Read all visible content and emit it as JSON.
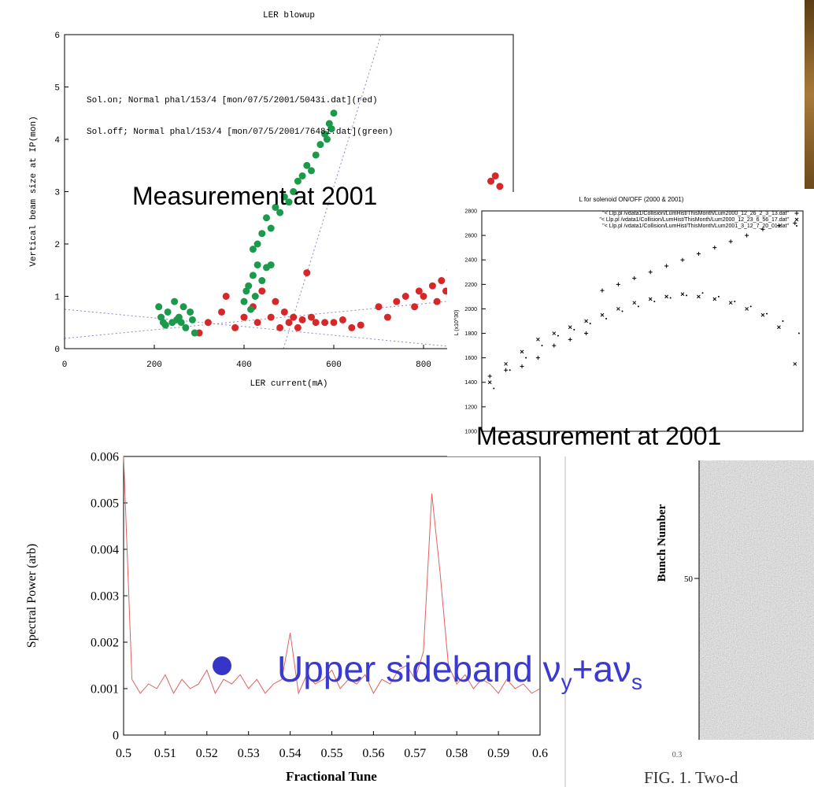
{
  "chart_data": [
    {
      "type": "scatter",
      "title": "LER blowup",
      "xlabel": "LER current(mA)",
      "ylabel": "Vertical beam size at IP(mon)",
      "xlim": [
        0,
        1000
      ],
      "ylim": [
        0,
        6
      ],
      "xticks": [
        0,
        200,
        400,
        600,
        800
      ],
      "yticks": [
        0,
        1,
        2,
        3,
        4,
        5,
        6
      ],
      "legend": "upper left",
      "series": [
        {
          "name": "Sol.on; Normal phal/153/4 [mon/07/5/2001/5043i.dat](red)",
          "color": "#d62828",
          "marker": "dot",
          "x": [
            300,
            320,
            350,
            360,
            380,
            400,
            420,
            430,
            440,
            460,
            470,
            480,
            490,
            500,
            510,
            520,
            530,
            540,
            550,
            560,
            580,
            600,
            620,
            640,
            660,
            700,
            720,
            740,
            760,
            780,
            790,
            800,
            820,
            830,
            840,
            850,
            860,
            870,
            880,
            890,
            900,
            950,
            960,
            970
          ],
          "values": [
            0.3,
            0.5,
            0.7,
            1.0,
            0.4,
            0.6,
            0.8,
            0.5,
            1.1,
            0.6,
            0.9,
            0.4,
            0.7,
            0.5,
            0.6,
            0.4,
            0.55,
            1.45,
            0.6,
            0.5,
            0.5,
            0.5,
            0.55,
            0.4,
            0.45,
            0.8,
            0.6,
            0.9,
            1.0,
            0.8,
            1.1,
            1.0,
            1.2,
            0.9,
            1.3,
            1.1,
            1.5,
            1.8,
            2.0,
            2.3,
            1.6,
            3.2,
            3.3,
            3.1
          ]
        },
        {
          "name": "Sol.off; Normal phal/153/4 [mon/07/5/2001/7648i.dat](green)",
          "color": "#1a9a4a",
          "marker": "dot",
          "x": [
            210,
            215,
            220,
            225,
            230,
            240,
            245,
            250,
            255,
            260,
            265,
            270,
            280,
            285,
            290,
            400,
            405,
            410,
            415,
            420,
            425,
            430,
            440,
            450,
            460,
            420,
            430,
            440,
            450,
            460,
            470,
            480,
            490,
            500,
            510,
            520,
            530,
            540,
            550,
            560,
            570,
            580,
            590,
            600,
            595,
            585
          ],
          "values": [
            0.8,
            0.6,
            0.5,
            0.45,
            0.7,
            0.5,
            0.9,
            0.55,
            0.6,
            0.5,
            0.8,
            0.4,
            0.7,
            0.55,
            0.3,
            0.9,
            1.1,
            1.2,
            0.75,
            1.4,
            1.0,
            1.6,
            1.3,
            1.55,
            1.6,
            1.9,
            2.0,
            2.2,
            2.5,
            2.3,
            2.7,
            2.6,
            2.9,
            2.8,
            3.0,
            3.2,
            3.3,
            3.5,
            3.4,
            3.7,
            3.9,
            4.1,
            4.3,
            4.5,
            4.2,
            4.0
          ]
        }
      ]
    },
    {
      "type": "scatter",
      "title": "L for solenoid ON/OFF (2000 & 2001)",
      "ylabel": "L (x10^30)",
      "xlim": [
        0,
        80
      ],
      "ylim": [
        1000,
        2800
      ],
      "yticks": [
        1000,
        1200,
        1400,
        1600,
        1800,
        2000,
        2200,
        2400,
        2600,
        2800
      ],
      "legend": "upper right",
      "series": [
        {
          "name": "\"< Llp.pl /vdata1/Collision/LumHist/ThisMonth/Lum2000_12_26_2_3_13.dat\"",
          "color": "#000000",
          "marker": "+",
          "x": [
            2,
            6,
            10,
            14,
            18,
            22,
            26,
            30,
            34,
            38,
            42,
            46,
            50,
            54,
            58,
            62,
            66,
            70,
            74,
            78
          ],
          "values": [
            1450,
            1500,
            1530,
            1600,
            1700,
            1750,
            1800,
            2150,
            2200,
            2250,
            2300,
            2350,
            2400,
            2450,
            2500,
            2550,
            2600,
            2650,
            2680,
            2700
          ]
        },
        {
          "name": "\"< Llp.pl /vdata1/Collision/LumHist/ThisMonth/Lum2000_12_23_6_56_17.dat\"",
          "color": "#000000",
          "marker": "x",
          "x": [
            2,
            6,
            10,
            14,
            18,
            22,
            26,
            30,
            34,
            38,
            42,
            46,
            50,
            54,
            58,
            62,
            66,
            70,
            74,
            78
          ],
          "values": [
            1400,
            1550,
            1650,
            1750,
            1800,
            1850,
            1900,
            1950,
            2000,
            2050,
            2080,
            2100,
            2120,
            2100,
            2080,
            2050,
            2000,
            1950,
            1850,
            1550
          ]
        },
        {
          "name": "\"< Llp.pl /vdata1/Collision/LumHist/ThisMonth/Lum2001_3_12_7_20_01.dat\"",
          "color": "#000000",
          "marker": ".",
          "x": [
            3,
            7,
            11,
            15,
            19,
            23,
            27,
            31,
            35,
            39,
            43,
            47,
            51,
            55,
            59,
            63,
            67,
            71,
            75,
            79
          ],
          "values": [
            1350,
            1500,
            1600,
            1700,
            1780,
            1830,
            1880,
            1920,
            1980,
            2020,
            2060,
            2090,
            2110,
            2130,
            2100,
            2060,
            2020,
            1960,
            1900,
            1800
          ]
        }
      ]
    },
    {
      "type": "line",
      "xlabel": "Fractional Tune",
      "ylabel": "Spectral Power (arb)",
      "color": "#e06060",
      "xlim": [
        0.5,
        0.6
      ],
      "ylim": [
        0,
        0.006
      ],
      "xticks": [
        0.5,
        0.51,
        0.52,
        0.53,
        0.54,
        0.55,
        0.56,
        0.57,
        0.58,
        0.59,
        0.6
      ],
      "yticks": [
        0,
        0.001,
        0.002,
        0.003,
        0.004,
        0.005,
        0.006
      ],
      "x": [
        0.5,
        0.502,
        0.504,
        0.506,
        0.508,
        0.51,
        0.512,
        0.514,
        0.516,
        0.518,
        0.52,
        0.522,
        0.524,
        0.526,
        0.528,
        0.53,
        0.532,
        0.534,
        0.536,
        0.538,
        0.54,
        0.542,
        0.544,
        0.546,
        0.548,
        0.55,
        0.552,
        0.554,
        0.556,
        0.558,
        0.56,
        0.562,
        0.564,
        0.566,
        0.568,
        0.57,
        0.572,
        0.574,
        0.576,
        0.578,
        0.58,
        0.582,
        0.584,
        0.586,
        0.588,
        0.59,
        0.592,
        0.594,
        0.596,
        0.598,
        0.6
      ],
      "values": [
        0.006,
        0.0012,
        0.0009,
        0.0011,
        0.001,
        0.0013,
        0.0009,
        0.0012,
        0.001,
        0.0011,
        0.0014,
        0.0009,
        0.0012,
        0.0011,
        0.0013,
        0.001,
        0.0012,
        0.0009,
        0.0011,
        0.0012,
        0.0022,
        0.0009,
        0.0013,
        0.0011,
        0.0012,
        0.0014,
        0.001,
        0.0012,
        0.0011,
        0.0013,
        0.0009,
        0.0012,
        0.0011,
        0.0014,
        0.0015,
        0.0012,
        0.0018,
        0.0052,
        0.0035,
        0.0015,
        0.0011,
        0.0013,
        0.001,
        0.0012,
        0.0011,
        0.0009,
        0.0012,
        0.001,
        0.0011,
        0.0009,
        0.001
      ]
    }
  ],
  "annotations": {
    "measurement_1": "Measurement at 2001",
    "measurement_2": "Measurement at 2001",
    "sideband": {
      "text": "Upper sideband ν",
      "sub1": "y",
      "mid": "+aν",
      "sub2": "s"
    }
  },
  "figure": {
    "ylabel": "Bunch Number",
    "yticks": [
      50
    ],
    "xticks": [
      0.3
    ],
    "caption": "FIG. 1.  Two-d"
  }
}
